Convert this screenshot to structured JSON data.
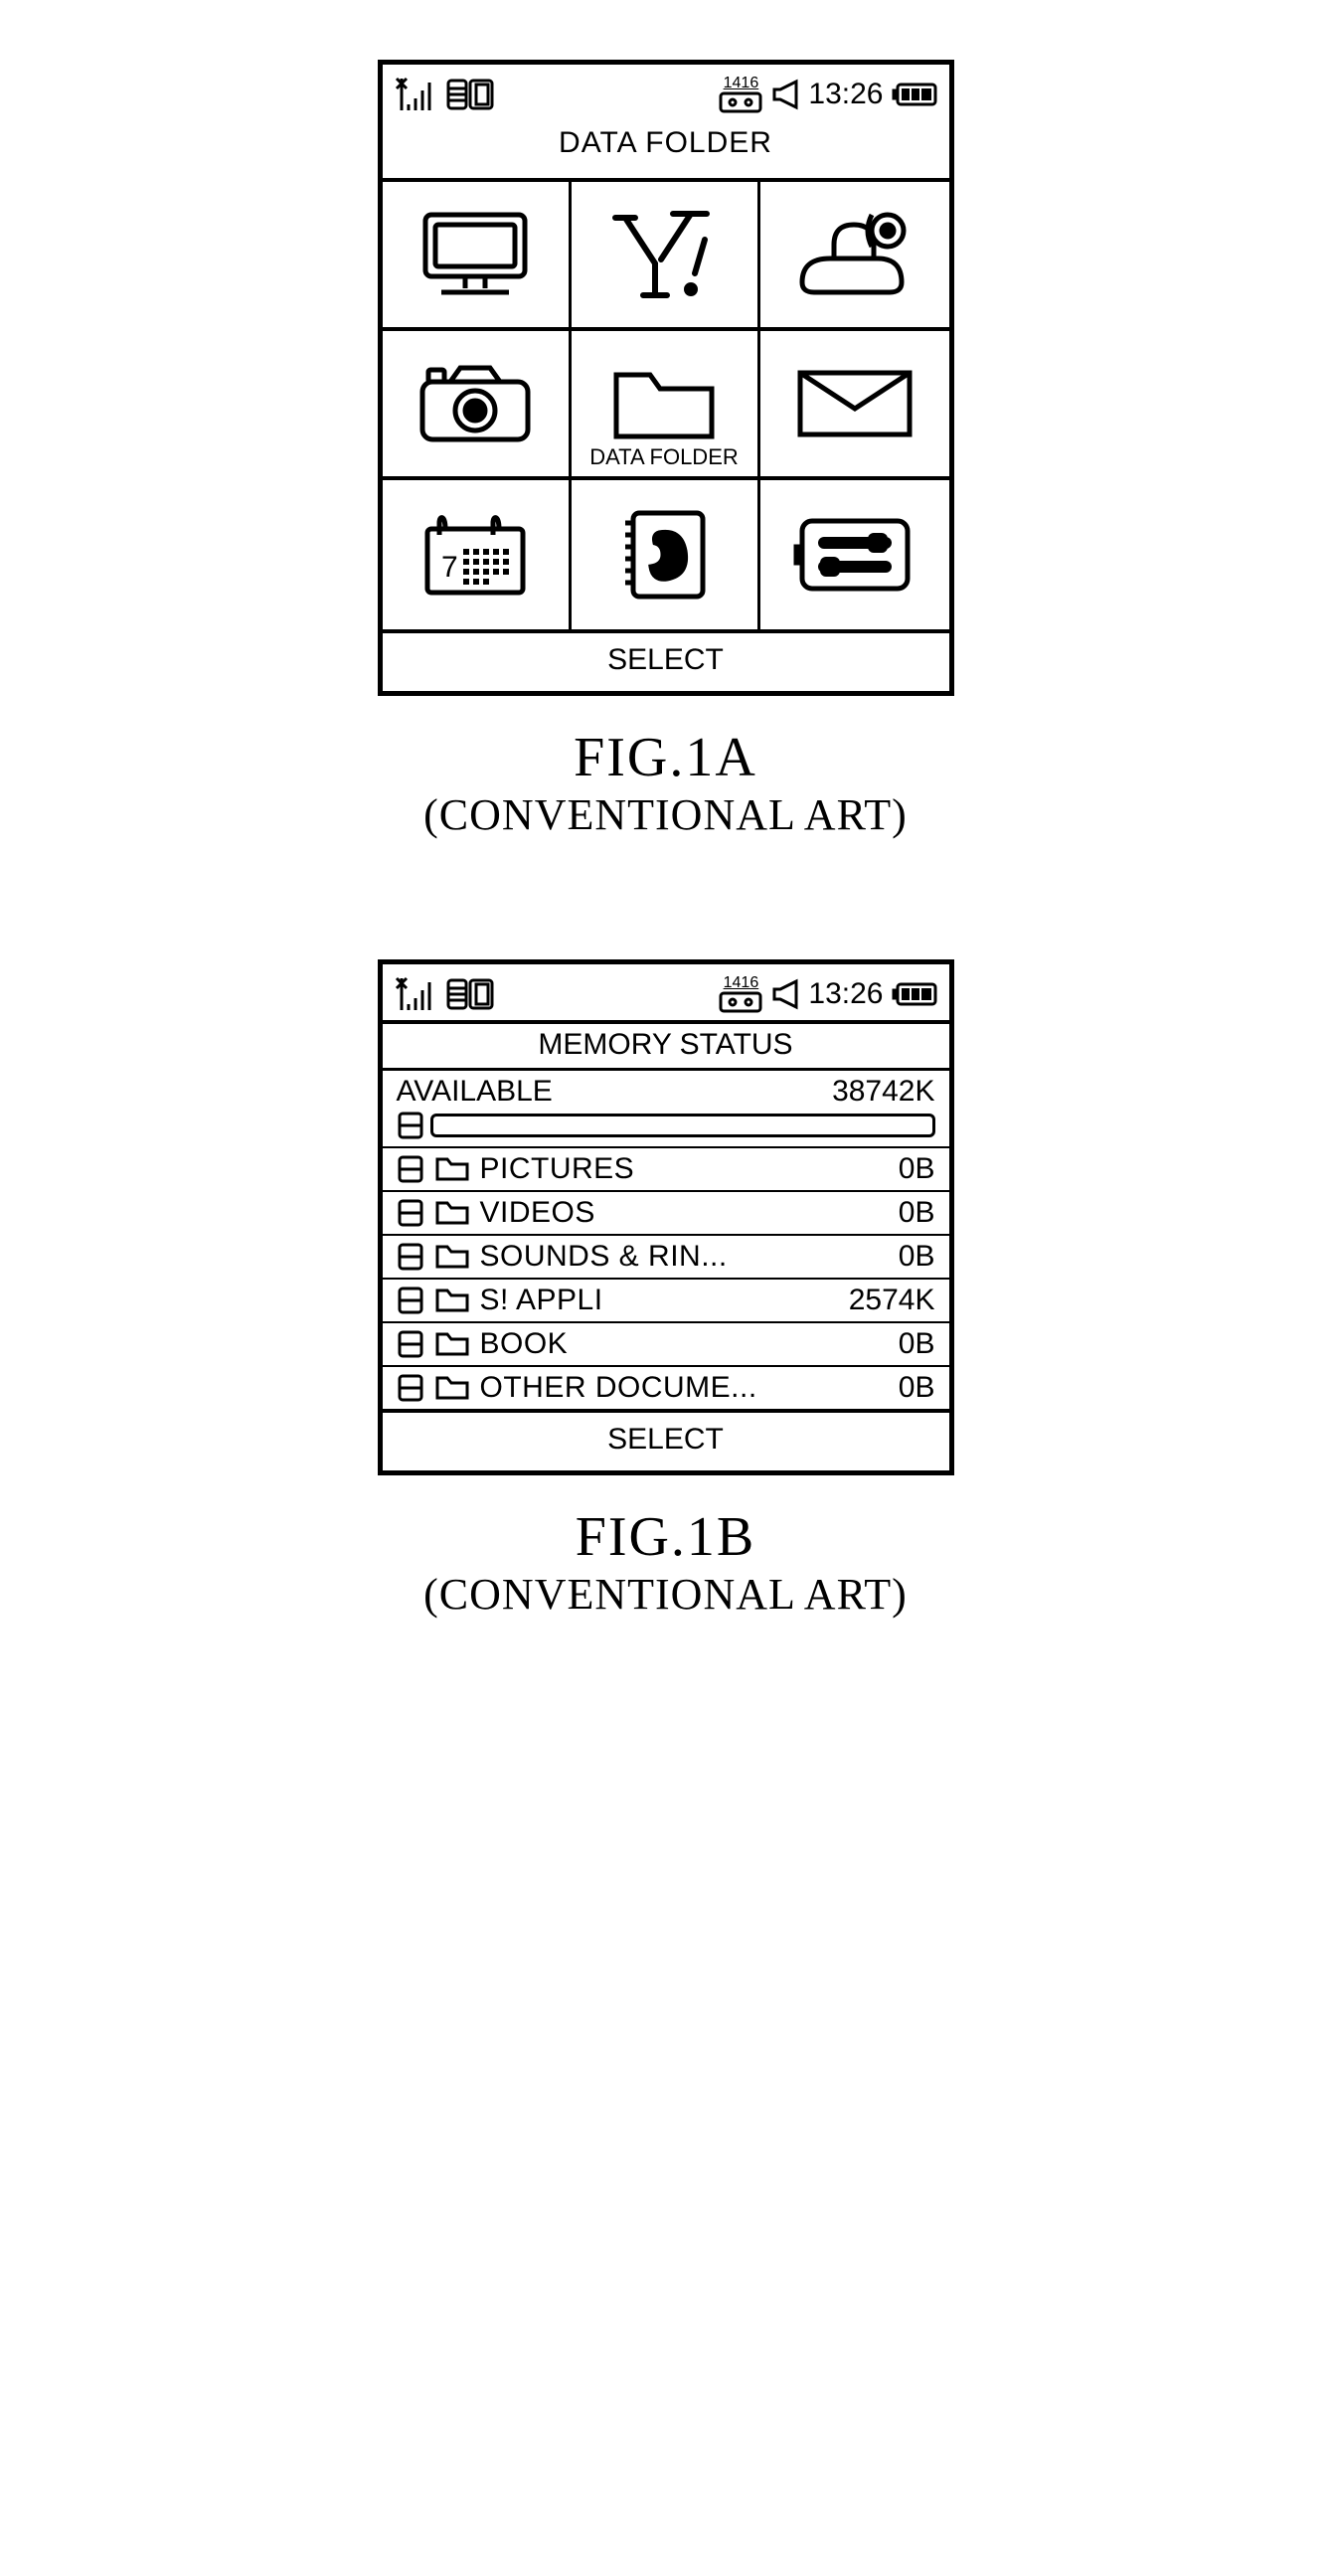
{
  "colors": {
    "stroke": "#000000",
    "bg": "#ffffff"
  },
  "stroke_width": {
    "outer": 5,
    "divider": 4,
    "icon": 4,
    "thin": 3
  },
  "statusbar": {
    "tape_number": "1416",
    "time": "13:26"
  },
  "fig1a": {
    "title": "DATA FOLDER",
    "grid": {
      "rows": 3,
      "cols": 3,
      "items": [
        {
          "icon": "monitor",
          "label": ""
        },
        {
          "icon": "yahoo",
          "label": ""
        },
        {
          "icon": "media",
          "label": ""
        },
        {
          "icon": "camera",
          "label": ""
        },
        {
          "icon": "folder",
          "label": "DATA FOLDER"
        },
        {
          "icon": "envelope",
          "label": ""
        },
        {
          "icon": "calendar",
          "label": ""
        },
        {
          "icon": "phonebook",
          "label": ""
        },
        {
          "icon": "settings",
          "label": ""
        }
      ]
    },
    "softkey": "SELECT",
    "caption_line1": "FIG.1A",
    "caption_line2": "(CONVENTIONAL ART)"
  },
  "fig1b": {
    "title": "MEMORY STATUS",
    "available_label": "AVAILABLE",
    "available_value": "38742K",
    "rows": [
      {
        "label": "PICTURES",
        "value": "0B"
      },
      {
        "label": "VIDEOS",
        "value": "0B"
      },
      {
        "label": "SOUNDS & RIN...",
        "value": "0B"
      },
      {
        "label": "S!  APPLI",
        "value": "2574K"
      },
      {
        "label": "BOOK",
        "value": "0B"
      },
      {
        "label": "OTHER DOCUME...",
        "value": "0B"
      }
    ],
    "softkey": "SELECT",
    "caption_line1": "FIG.1B",
    "caption_line2": "(CONVENTIONAL ART)"
  }
}
